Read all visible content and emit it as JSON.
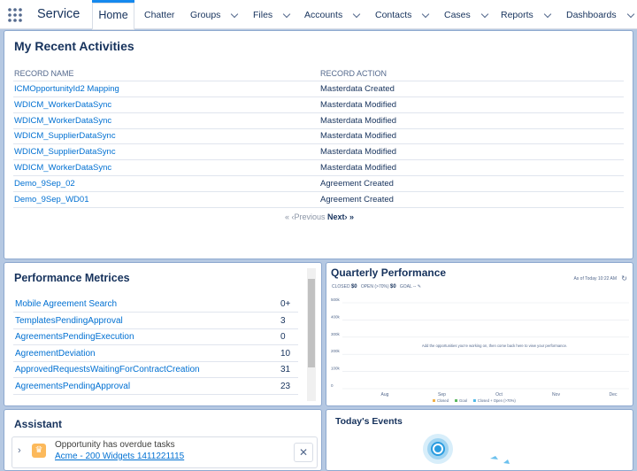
{
  "nav": {
    "app": "Service",
    "tabs": [
      "Home",
      "Chatter",
      "Groups",
      "Files",
      "Accounts",
      "Contacts",
      "Cases",
      "Reports",
      "Dashboards"
    ],
    "dropdown_tabs": [
      false,
      false,
      true,
      true,
      true,
      true,
      true,
      true,
      true
    ]
  },
  "recent_activities": {
    "title": "My Recent Activities",
    "headers": [
      "RECORD NAME",
      "RECORD ACTION"
    ],
    "rows": [
      [
        "ICMOpportunityId2 Mapping",
        "Masterdata Created"
      ],
      [
        "WDICM_WorkerDataSync",
        "Masterdata Modified"
      ],
      [
        "WDICM_WorkerDataSync",
        "Masterdata Modified"
      ],
      [
        "WDICM_SupplierDataSync",
        "Masterdata Modified"
      ],
      [
        "WDICM_SupplierDataSync",
        "Masterdata Modified"
      ],
      [
        "WDICM_WorkerDataSync",
        "Masterdata Modified"
      ],
      [
        "Demo_9Sep_02",
        "Agreement Created"
      ],
      [
        "Demo_9Sep_WD01",
        "Agreement Created"
      ]
    ],
    "pagination": {
      "previous": "Previous",
      "next": "Next"
    }
  },
  "performance_metrics": {
    "title": "Performance Metrices",
    "rows": [
      [
        "Mobile Agreement Search",
        "0+"
      ],
      [
        "TemplatesPendingApproval",
        "3"
      ],
      [
        "AgreementsPendingExecution",
        "0"
      ],
      [
        "AgreementDeviation",
        "10"
      ],
      [
        "ApprovedRequestsWaitingForContractCreation",
        "31"
      ],
      [
        "AgreementsPendingApproval",
        "23"
      ]
    ]
  },
  "quarterly_performance": {
    "title": "Quarterly Performance",
    "as_of": "As of Today 10:22 AM",
    "closed_label": "CLOSED",
    "closed_value": "$0",
    "open_label": "OPEN (>70%)",
    "open_value": "$0",
    "goal_label": "GOAL",
    "goal_value": "--",
    "yticks": [
      "500k",
      "400k",
      "300k",
      "200k",
      "100k",
      "0"
    ],
    "months": [
      "Aug",
      "Sep",
      "Oct",
      "Nov",
      "Dec"
    ],
    "message": "Add the opportunities you're working on, then come back here to view your performance.",
    "legend": [
      {
        "name": "Closed",
        "color": "#f2b24b"
      },
      {
        "name": "Goal",
        "color": "#5bb85d"
      },
      {
        "name": "Closed + Open (>70%)",
        "color": "#4fb9e8"
      }
    ]
  },
  "assistant": {
    "title": "Assistant",
    "item_title": "Opportunity has overdue tasks",
    "item_link": "Acme - 200 Widgets 1411221115"
  },
  "todays_events": {
    "title": "Today's Events"
  }
}
